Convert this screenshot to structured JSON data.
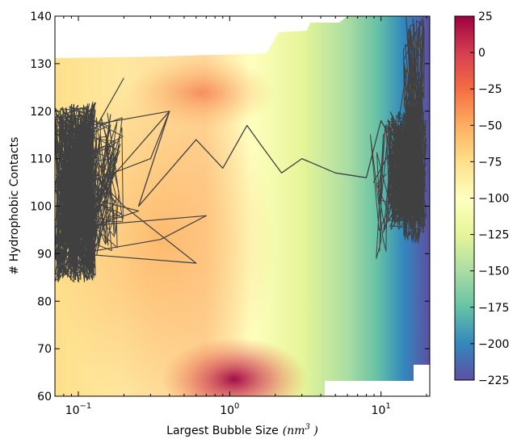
{
  "chart_data": {
    "type": "heatmap",
    "xlabel": "Largest Bubble Size",
    "xlabel_unit_base": "nm",
    "xlabel_unit_exp": "3",
    "ylabel": "# Hydrophobic Contacts",
    "x_scale": "log",
    "xlim": [
      0.07,
      21
    ],
    "ylim": [
      60,
      140
    ],
    "x_ticks": [
      {
        "value": 0.1,
        "base": "10",
        "exp": "−1"
      },
      {
        "value": 1,
        "base": "10",
        "exp": "0"
      },
      {
        "value": 10,
        "base": "10",
        "exp": "1"
      }
    ],
    "y_ticks": [
      60,
      70,
      80,
      90,
      100,
      110,
      120,
      130,
      140
    ],
    "colorbar": {
      "min": -225,
      "max": 25,
      "ticks": [
        "25",
        "0",
        "−25",
        "−50",
        "−75",
        "−100",
        "−125",
        "−150",
        "−175",
        "−200",
        "−225"
      ],
      "tick_values": [
        25,
        0,
        -25,
        -50,
        -75,
        -100,
        -125,
        -150,
        -175,
        -200,
        -225
      ],
      "colormap": "Spectral_r",
      "colors": [
        "#5e4fa2",
        "#3288bd",
        "#66c2a5",
        "#abdda4",
        "#e6f598",
        "#ffffbf",
        "#fee08b",
        "#fdae61",
        "#f46d43",
        "#d53e4f",
        "#9e0142"
      ]
    },
    "trajectory_color": "#404040",
    "trajectory_samples": [
      {
        "x": 0.12,
        "y": 112
      },
      {
        "x": 0.08,
        "y": 95
      },
      {
        "x": 0.2,
        "y": 109
      },
      {
        "x": 0.4,
        "y": 120
      },
      {
        "x": 0.25,
        "y": 100
      },
      {
        "x": 0.6,
        "y": 114
      },
      {
        "x": 0.9,
        "y": 108
      },
      {
        "x": 1.3,
        "y": 117
      },
      {
        "x": 1.6,
        "y": 113
      },
      {
        "x": 2.2,
        "y": 107
      },
      {
        "x": 3,
        "y": 110
      },
      {
        "x": 5,
        "y": 107
      },
      {
        "x": 8,
        "y": 106
      },
      {
        "x": 10,
        "y": 118
      },
      {
        "x": 14,
        "y": 110
      },
      {
        "x": 18,
        "y": 100
      }
    ]
  }
}
